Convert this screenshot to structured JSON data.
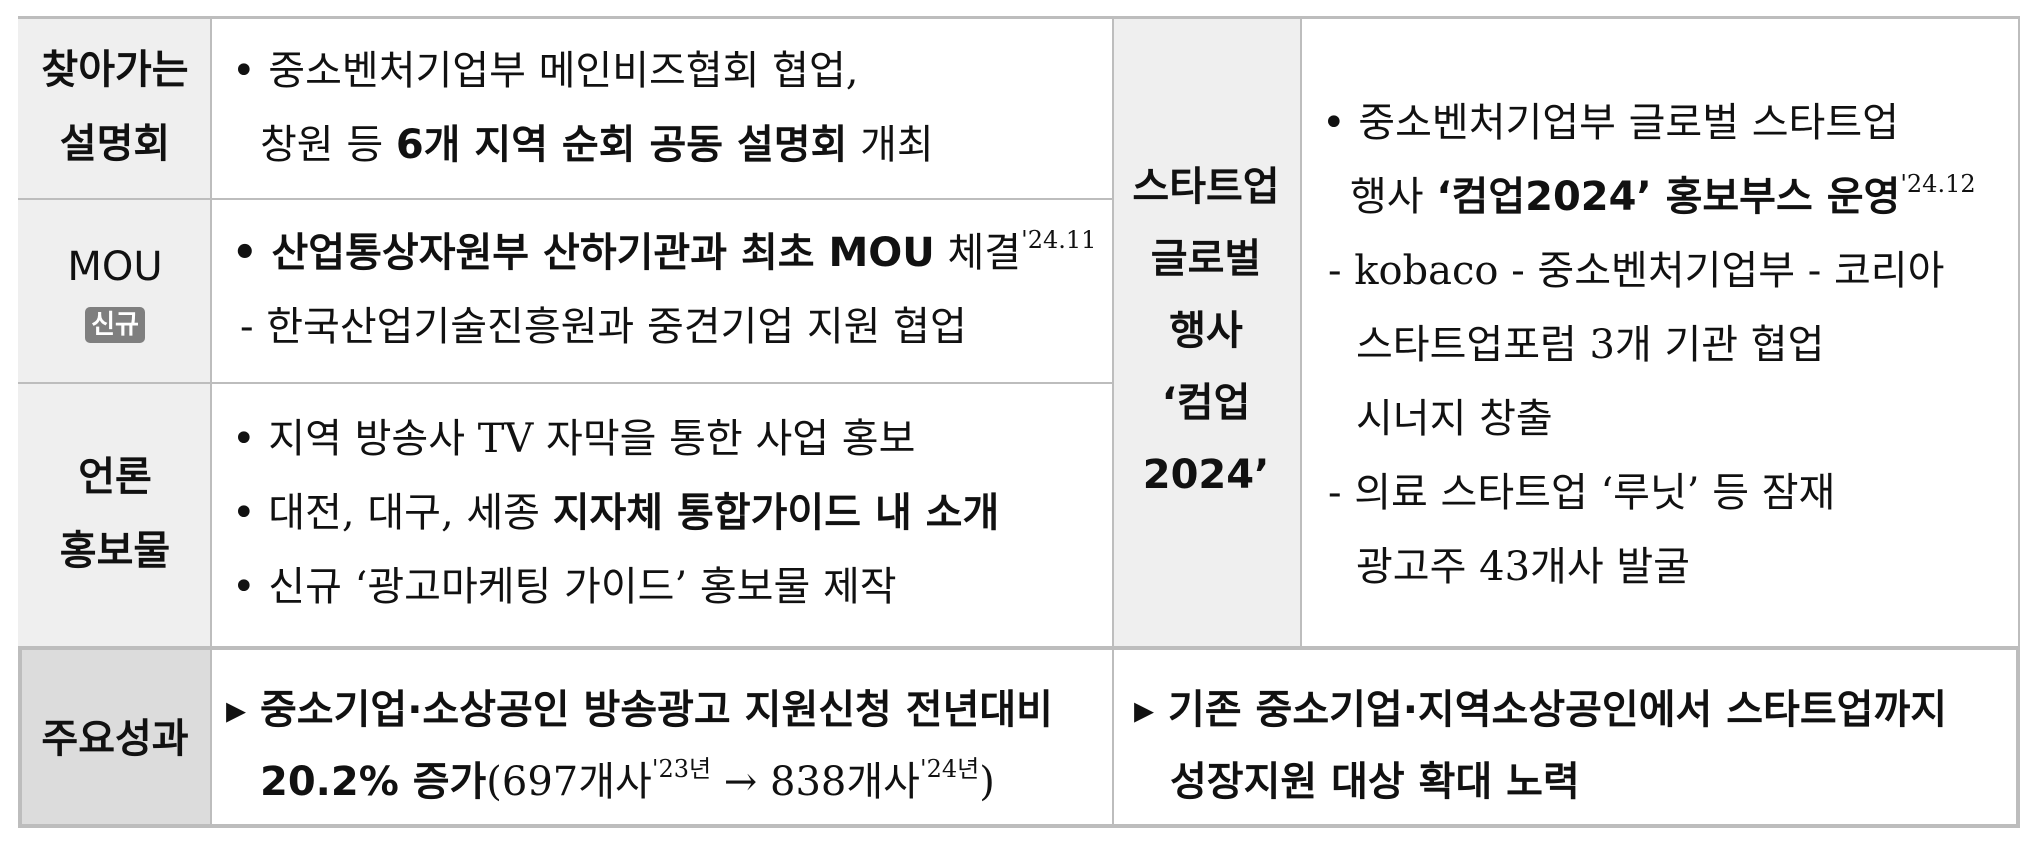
{
  "rows": {
    "visit": {
      "label": [
        "찾아가는",
        "설명회"
      ],
      "line1": "• 중소벤처기업부 메인비즈협회 협업,",
      "line2_pre": "창원 등 ",
      "line2_bold": "6개 지역 순회 공동 설명회",
      "line2_post": " 개최"
    },
    "mou": {
      "label": "MOU",
      "badge": "신규",
      "line1_bullet": "• ",
      "line1_bold": "산업통상자원부 산하기관과 최초 MOU",
      "line1_post": " 체결",
      "line1_sup": "'24.11",
      "line2": "- 한국산업기술진흥원과 중견기업 지원 협업"
    },
    "press": {
      "label": [
        "언론",
        "홍보물"
      ],
      "line1": "• 지역 방송사 TV 자막을 통한 사업 홍보",
      "line2_pre": "• 대전, 대구, 세종 ",
      "line2_bold": "지자체 통합가이드 내 소개",
      "line3": "• 신규 ‘광고마케팅 가이드’ 홍보물 제작"
    }
  },
  "event": {
    "label": [
      "스타트업",
      "글로벌",
      "행사",
      "‘컴업",
      "2024’"
    ],
    "line1": "• 중소벤처기업부 글로벌 스타트업",
    "line2_pre": "행사 ",
    "line2_bold": "‘컴업2024’ 홍보부스 운영",
    "line2_sup": "'24.12",
    "line3": "- kobaco - 중소벤처기업부 - 코리아",
    "line4": "스타트업포럼 3개 기관 협업",
    "line5": "시너지 창출",
    "line6": "- 의료 스타트업 ‘루닛’ 등 잠재",
    "line7": "광고주 43개사 발굴"
  },
  "results": {
    "label": "주요성과",
    "left_line1": "▸ 중소기업·소상공인 방송광고 지원신청 전년대비",
    "left_line2_bold": "20.2% 증가",
    "left_line2_a": "(697개사",
    "left_line2_sup1": "'23년",
    "left_line2_b": " → 838개사",
    "left_line2_sup2": "'24년",
    "left_line2_c": ")",
    "right_line1": "▸ 기존 중소기업·지역소상공인에서 스타트업까지",
    "right_line2": "성장지원 대상 확대 노력"
  }
}
